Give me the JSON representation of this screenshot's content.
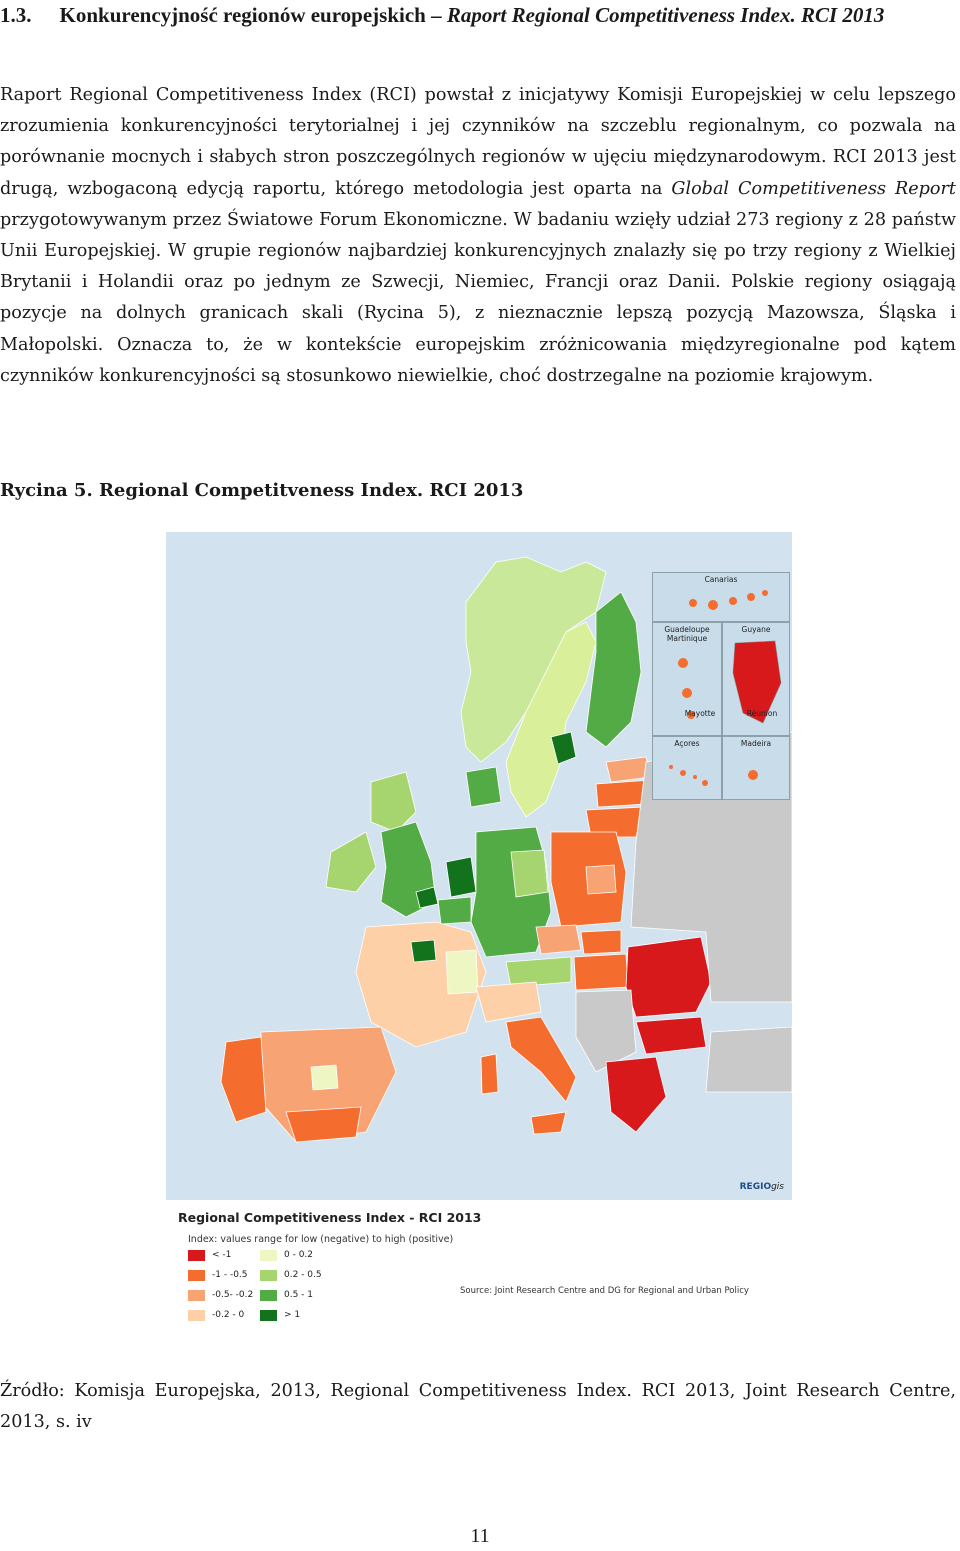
{
  "heading": {
    "number": "1.3.",
    "text": "Konkurencyjność regionów europejskich – ",
    "italic": "Raport Regional Competitiveness Index. RCI 2013"
  },
  "paragraph": {
    "p1": "Raport Regional Competitiveness Index (RCI) powstał z inicjatywy Komisji Europejskiej w celu lepszego zrozumienia konkurencyjności terytorialnej i jej czynników na szczeblu regionalnym, co pozwala na porównanie mocnych i słabych stron poszczególnych regionów w ujęciu międzynarodowym. RCI 2013 jest drugą, wzbogaconą edycją raportu, którego metodologia jest oparta na ",
    "italic": "Global Competitiveness Report",
    "p2": " przygotowywanym przez Światowe Forum Ekonomiczne. W badaniu wzięły udział 273 regiony z 28 państw Unii Europejskiej. W grupie regionów najbardziej konkurencyjnych znalazły się po trzy regiony z Wielkiej Brytanii i Holandii oraz po jednym ze Szwecji, Niemiec, Francji oraz Danii. Polskie regiony osiągają pozycje na dolnych granicach skali (Rycina 5), z nieznacznie lepszą pozycją Mazowsza, Śląska i Małopolski. Oznacza to, że w kontekście europejskim zróżnicowania międzyregionalne pod kątem czynników konkurencyjności są stosunkowo niewielkie, choć dostrzegalne na poziomie krajowym."
  },
  "figure_caption": "Rycina 5. Regional Competitveness Index. RCI 2013",
  "map": {
    "insets": {
      "canarias": "Canarias",
      "guadeloupe": "Guadeloupe",
      "martinique": "Martinique",
      "guyane": "Guyane",
      "mayotte": "Mayotte",
      "reunion": "Réunion",
      "acores": "Açores",
      "madeira": "Madeira"
    },
    "regio_brand": "REGIO",
    "regio_suffix": "gis"
  },
  "legend": {
    "title": "Regional Competitiveness Index - RCI 2013",
    "subtitle": "Index: values range for low (negative) to high (positive)",
    "items": [
      {
        "label": "< -1",
        "color": "#d7191c"
      },
      {
        "label": "-1 - -0.5",
        "color": "#f46d2e"
      },
      {
        "label": "-0.5- -0.2",
        "color": "#f8a374"
      },
      {
        "label": "-0.2 - 0",
        "color": "#fdd0a8"
      },
      {
        "label": "0 - 0.2",
        "color": "#eef6c3"
      },
      {
        "label": "0.2 - 0.5",
        "color": "#a6d56f"
      },
      {
        "label": "0.5 - 1",
        "color": "#52ab45"
      },
      {
        "label": "> 1",
        "color": "#13731c"
      }
    ],
    "source": "Source: Joint Research Centre and DG for Regional and Urban Policy"
  },
  "source_caption": "Źródło: Komisja Europejska, 2013, Regional Competitiveness Index. RCI 2013, Joint Research Centre, 2013, s. iv",
  "page_number": "11"
}
